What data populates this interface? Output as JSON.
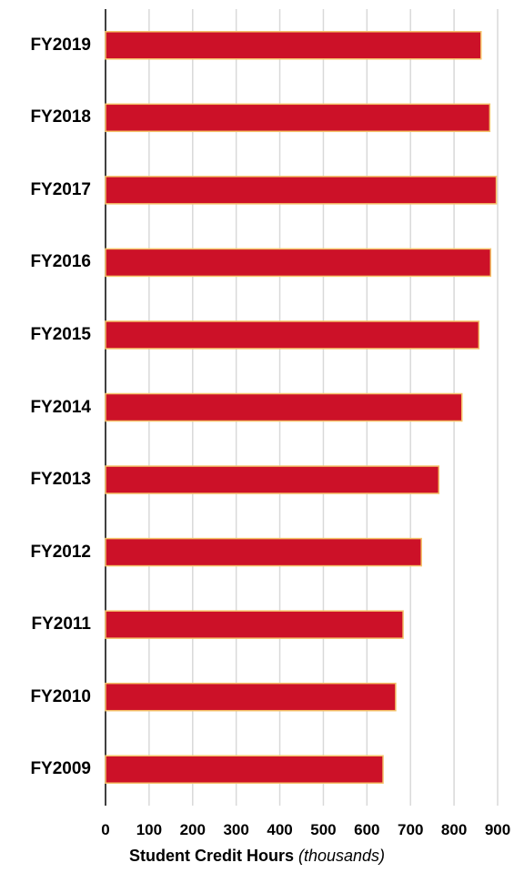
{
  "chart_data": {
    "type": "bar",
    "orientation": "horizontal",
    "categories": [
      "FY2019",
      "FY2018",
      "FY2017",
      "FY2016",
      "FY2015",
      "FY2014",
      "FY2013",
      "FY2012",
      "FY2011",
      "FY2010",
      "FY2009"
    ],
    "values": [
      862,
      882,
      897,
      884,
      857,
      818,
      765,
      725,
      683,
      666,
      637
    ],
    "xlim": [
      0,
      900
    ],
    "xticks": [
      "0",
      "100",
      "200",
      "300",
      "400",
      "500",
      "600",
      "700",
      "800",
      "900"
    ],
    "xlabel": "Student Credit Hours",
    "xlabel_suffix": "(thousands)",
    "grid": "vertical",
    "bar_color": "#cc1128",
    "bar_border_color": "#f5c36a"
  }
}
